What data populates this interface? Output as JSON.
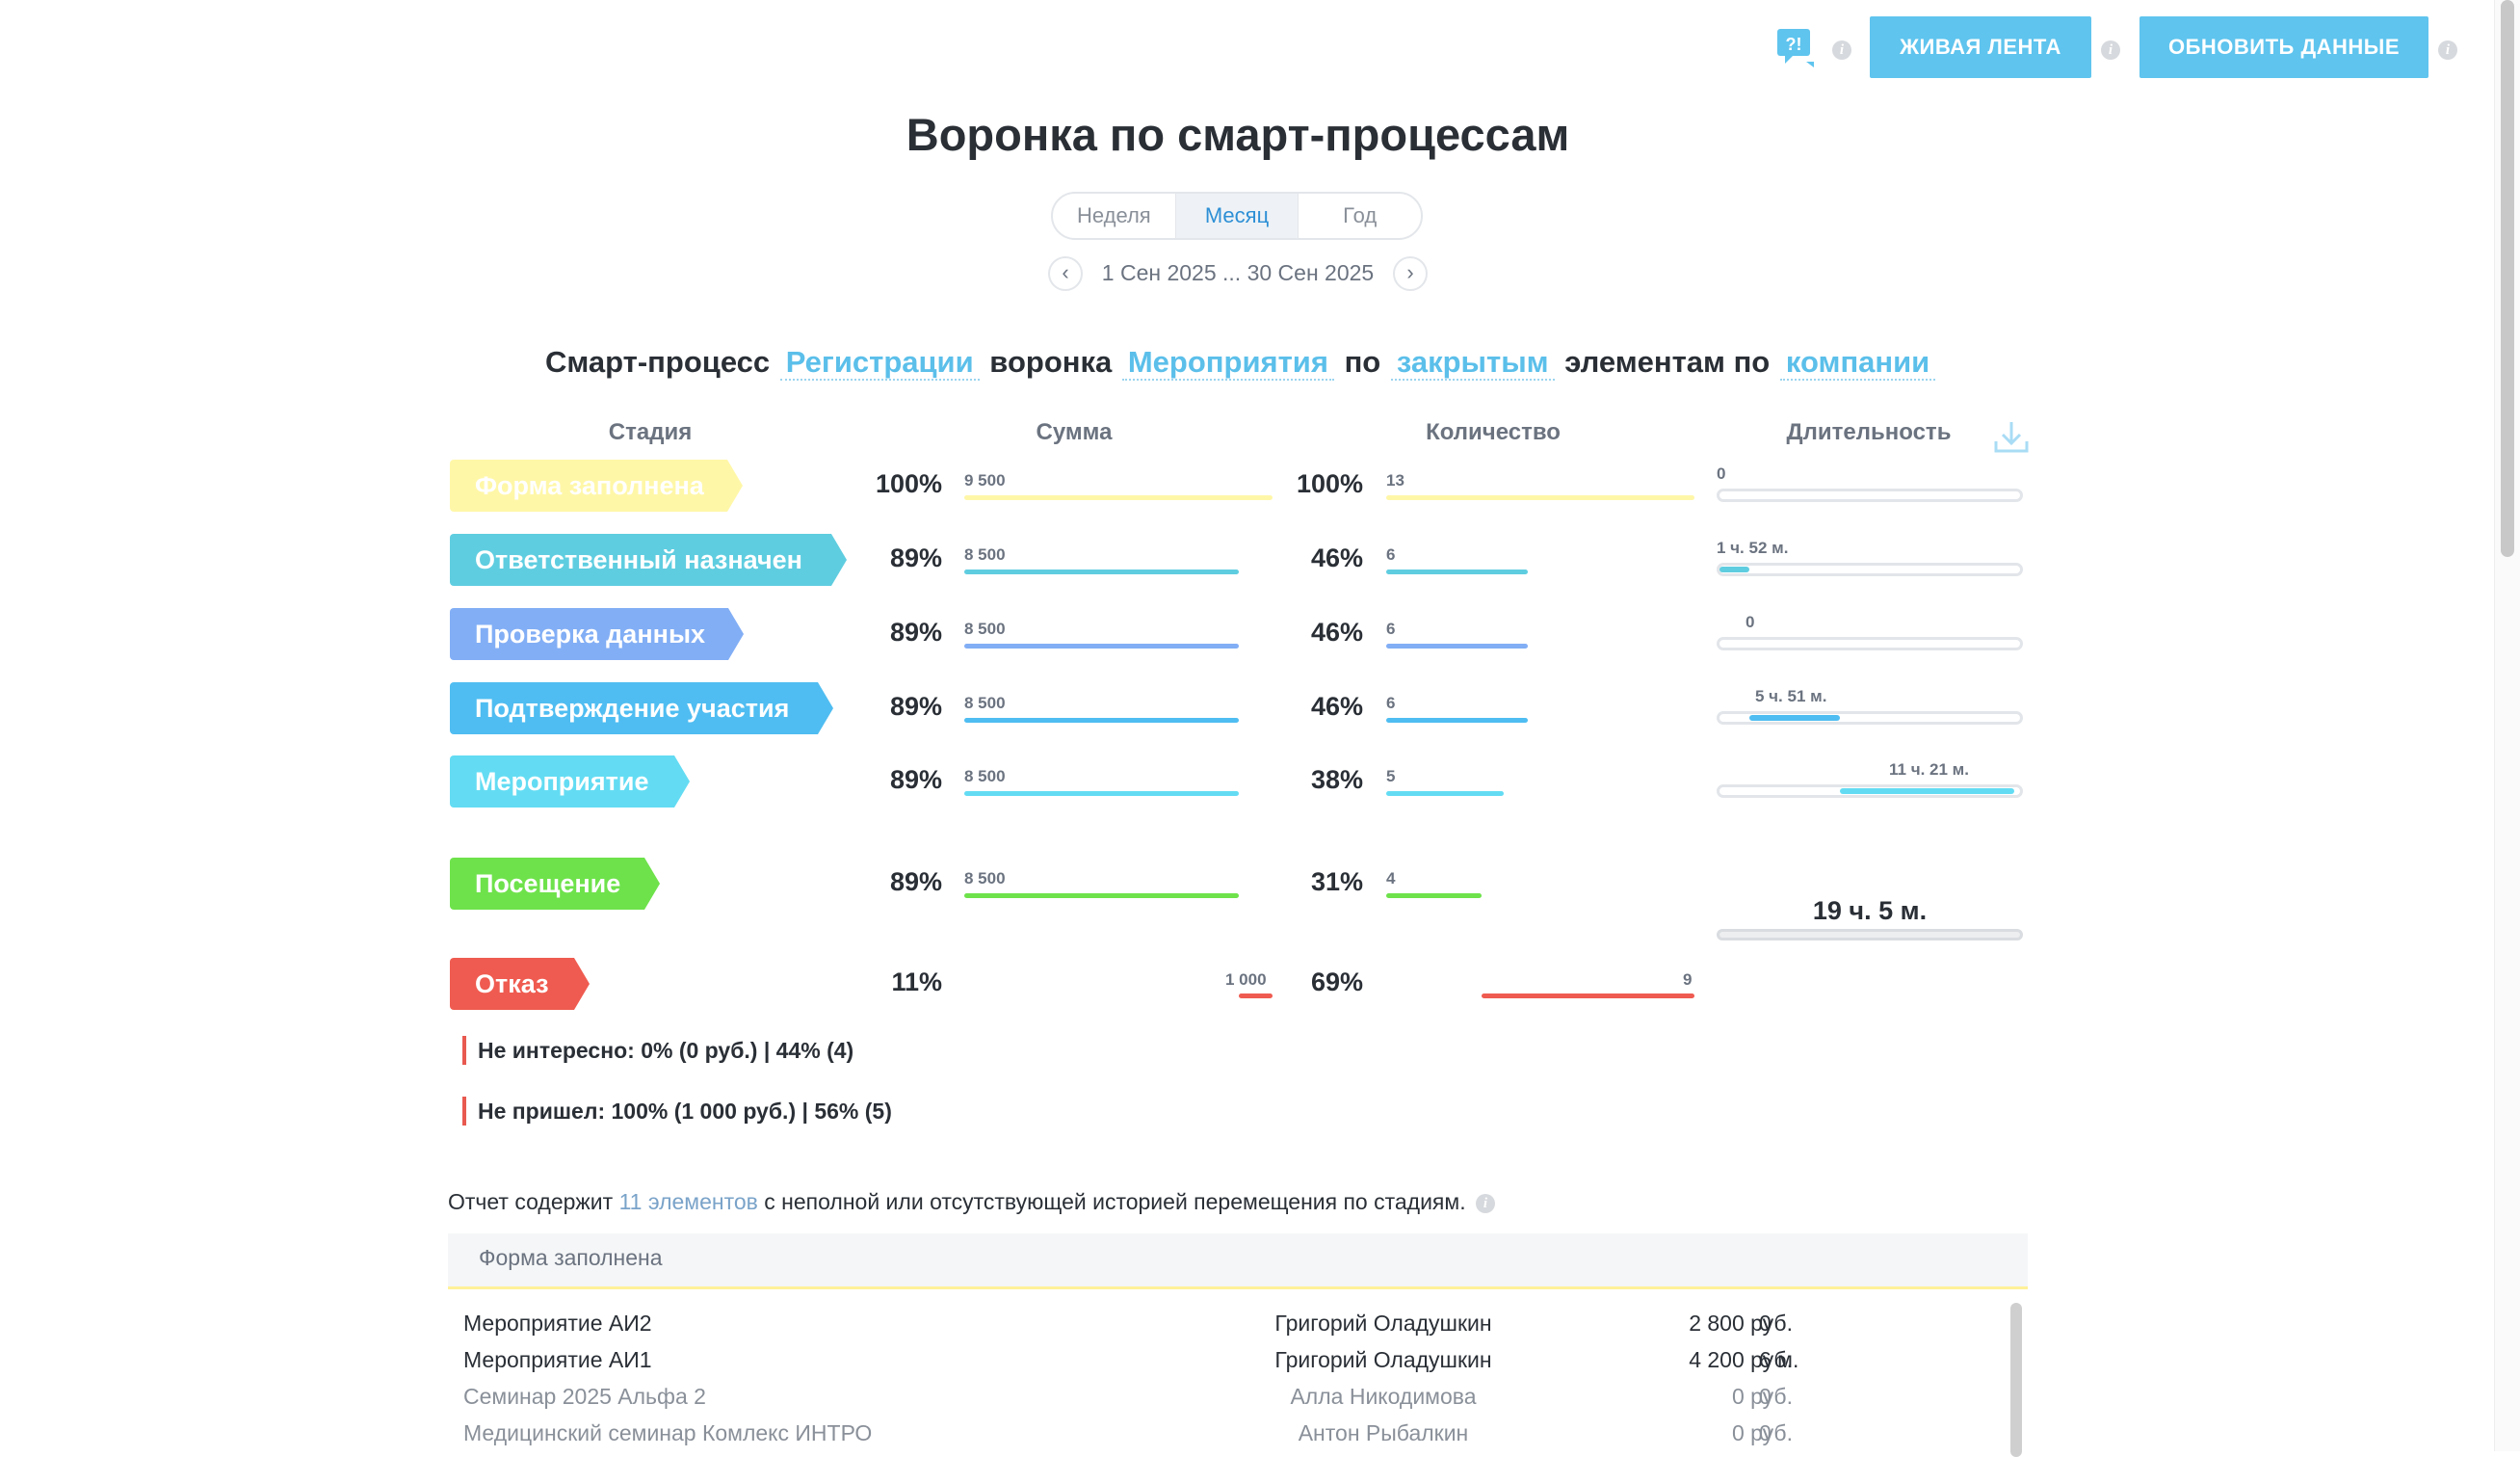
{
  "header": {
    "live_feed_btn": "ЖИВАЯ ЛЕНТА",
    "refresh_btn": "ОБНОВИТЬ ДАННЫЕ",
    "help_icon_text": "?!"
  },
  "title": "Воронка по смарт-процессам",
  "period": {
    "tabs": [
      "Неделя",
      "Месяц",
      "Год"
    ],
    "active": "Месяц",
    "date_range": "1 Сен 2025 ... 30 Сен 2025"
  },
  "filter": {
    "t1": "Смарт-процесс",
    "l1": "Регистрации",
    "t2": "воронка",
    "l2": "Мероприятия",
    "t3": "по",
    "l3": "закрытым",
    "t4": "элементам по",
    "l4": "компании"
  },
  "columns": {
    "stage": "Стадия",
    "sum": "Сумма",
    "count": "Количество",
    "duration": "Длительность"
  },
  "stages": [
    {
      "name": "Форма заполнена",
      "color": "#fff7a8",
      "sum_pct": "100%",
      "sum_val": "9 500",
      "sum_frac": 1.0,
      "cnt_pct": "100%",
      "cnt_val": "13",
      "cnt_frac": 1.0,
      "dur": "0",
      "dur_start": 0,
      "dur_frac": 0
    },
    {
      "name": "Ответственный назначен",
      "color": "#5fcde0",
      "sum_pct": "89%",
      "sum_val": "8 500",
      "sum_frac": 0.89,
      "cnt_pct": "46%",
      "cnt_val": "6",
      "cnt_frac": 0.46,
      "dur": "1 ч. 52 м.",
      "dur_start": 0,
      "dur_frac": 0.1
    },
    {
      "name": "Проверка данных",
      "color": "#82aef5",
      "sum_pct": "89%",
      "sum_val": "8 500",
      "sum_frac": 0.89,
      "cnt_pct": "46%",
      "cnt_val": "6",
      "cnt_frac": 0.46,
      "dur": "0",
      "dur_start": 0.1,
      "dur_frac": 0
    },
    {
      "name": "Подтверждение участия",
      "color": "#4fbdf1",
      "sum_pct": "89%",
      "sum_val": "8 500",
      "sum_frac": 0.89,
      "cnt_pct": "46%",
      "cnt_val": "6",
      "cnt_frac": 0.46,
      "dur": "5 ч. 51 м.",
      "dur_start": 0.1,
      "dur_frac": 0.3
    },
    {
      "name": "Мероприятие",
      "color": "#63dcf3",
      "sum_pct": "89%",
      "sum_val": "8 500",
      "sum_frac": 0.89,
      "cnt_pct": "38%",
      "cnt_val": "5",
      "cnt_frac": 0.38,
      "dur": "11 ч. 21 м.",
      "dur_start": 0.4,
      "dur_frac": 0.58
    },
    {
      "name": "Посещение",
      "color": "#6ee24b",
      "sum_pct": "89%",
      "sum_val": "8 500",
      "sum_frac": 0.89,
      "cnt_pct": "31%",
      "cnt_val": "4",
      "cnt_frac": 0.31,
      "dur": "",
      "dur_start": 0,
      "dur_frac": 0
    }
  ],
  "total_duration": "19 ч. 5 м.",
  "refusal": {
    "name": "Отказ",
    "color": "#ef5b50",
    "sum_pct": "11%",
    "sum_val": "1 000",
    "sum_frac": 0.11,
    "cnt_pct": "69%",
    "cnt_val": "9",
    "cnt_frac": 0.69,
    "reasons": [
      "Не интересно: 0% (0 руб.) | 44% (4)",
      "Не пришел: 100% (1 000 руб.) | 56% (5)"
    ]
  },
  "note": {
    "prefix": "Отчет содержит",
    "link": "11 элементов",
    "suffix": "с неполной или отсутствующей историей перемещения по стадиям."
  },
  "table": {
    "stage_title": "Форма заполнена",
    "rows": [
      {
        "name": "Мероприятие АИ2",
        "person": "Григорий Оладушкин",
        "amount": "2 800 руб.",
        "duration": "0",
        "dim": false
      },
      {
        "name": "Мероприятие АИ1",
        "person": "Григорий Оладушкин",
        "amount": "4 200 руб.",
        "duration": "6 м.",
        "dim": false
      },
      {
        "name": "Семинар 2025 Альфа 2",
        "person": "Алла Никодимова",
        "amount": "0 руб.",
        "duration": "0",
        "dim": true
      },
      {
        "name": "Медицинский семинар Комлекс ИНТРО",
        "person": "Антон Рыбалкин",
        "amount": "0 руб.",
        "duration": "0",
        "dim": true
      }
    ]
  }
}
